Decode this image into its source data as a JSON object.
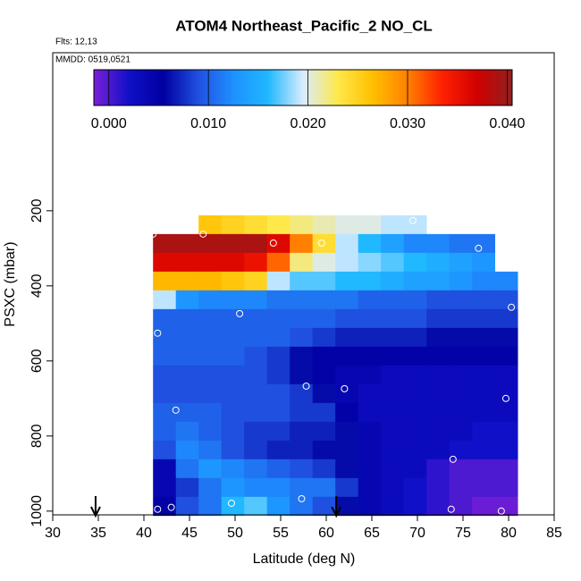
{
  "chart_data": {
    "type": "heatmap",
    "title": "ATOM4 Northeast_Pacific_2 NO_CL",
    "flights": "Flts: 12,13",
    "dates": "MMDD: 0519,0521",
    "x_label": "Latitude (deg N)",
    "y_label": "PSXC (mbar)",
    "xlim": [
      30,
      85
    ],
    "xticks": [
      30,
      35,
      40,
      45,
      50,
      55,
      60,
      65,
      70,
      75,
      80,
      85
    ],
    "ylim": [
      1010,
      -221
    ],
    "yticks": [
      200,
      400,
      600,
      800,
      1000
    ],
    "x_edges": [
      41,
      43.5,
      46,
      48.5,
      51,
      53.5,
      56,
      58.5,
      61,
      63.5,
      66,
      68.5,
      71,
      73.5,
      76,
      78.5,
      81
    ],
    "y_edges": [
      212,
      262,
      312,
      362,
      412,
      462,
      512,
      562,
      612,
      662,
      712,
      762,
      812,
      862,
      912,
      962,
      1012
    ],
    "values": [
      [
        null,
        null,
        0.026,
        0.025,
        0.024,
        0.023,
        0.022,
        0.021,
        0.02,
        0.02,
        0.019,
        0.019,
        null,
        null,
        null,
        null
      ],
      [
        0.039,
        0.039,
        0.039,
        0.039,
        0.039,
        0.036,
        0.03,
        0.024,
        0.019,
        0.016,
        0.014,
        0.012,
        0.012,
        0.011,
        0.011,
        null
      ],
      [
        0.036,
        0.036,
        0.036,
        0.036,
        0.035,
        0.031,
        0.022,
        0.02,
        0.019,
        0.018,
        0.017,
        0.016,
        0.015,
        0.014,
        0.013,
        null
      ],
      [
        0.027,
        0.027,
        0.027,
        0.026,
        0.025,
        0.019,
        0.017,
        0.017,
        0.016,
        0.016,
        0.015,
        0.014,
        0.014,
        0.013,
        0.012,
        0.012
      ],
      [
        0.019,
        0.013,
        0.012,
        0.012,
        0.012,
        0.011,
        0.011,
        0.011,
        0.011,
        0.01,
        0.01,
        0.01,
        0.009,
        0.009,
        0.009,
        0.009
      ],
      [
        0.01,
        0.01,
        0.01,
        0.01,
        0.01,
        0.01,
        0.01,
        0.01,
        0.009,
        0.009,
        0.009,
        0.009,
        0.008,
        0.008,
        0.008,
        0.008
      ],
      [
        0.01,
        0.01,
        0.01,
        0.01,
        0.01,
        0.01,
        0.009,
        0.008,
        0.007,
        0.007,
        0.007,
        0.007,
        0.006,
        0.006,
        0.006,
        0.006
      ],
      [
        0.01,
        0.01,
        0.01,
        0.01,
        0.009,
        0.008,
        0.006,
        0.005,
        0.005,
        0.005,
        0.005,
        0.005,
        0.005,
        0.005,
        0.005,
        0.005
      ],
      [
        0.009,
        0.009,
        0.009,
        0.009,
        0.009,
        0.008,
        0.006,
        0.005,
        0.004,
        0.004,
        0.003,
        0.003,
        0.003,
        0.003,
        0.003,
        0.003
      ],
      [
        0.009,
        0.009,
        0.009,
        0.009,
        0.009,
        0.009,
        0.008,
        0.006,
        0.004,
        0.003,
        0.003,
        0.003,
        0.003,
        0.003,
        0.003,
        0.003
      ],
      [
        0.01,
        0.01,
        0.01,
        0.009,
        0.009,
        0.009,
        0.008,
        0.008,
        0.005,
        0.003,
        0.003,
        0.003,
        0.003,
        0.003,
        0.003,
        0.003
      ],
      [
        0.01,
        0.011,
        0.01,
        0.009,
        0.008,
        0.008,
        0.007,
        0.007,
        0.006,
        0.004,
        0.003,
        0.003,
        0.003,
        0.003,
        0.002,
        0.002
      ],
      [
        0.009,
        0.012,
        0.011,
        0.009,
        0.008,
        0.007,
        0.007,
        0.006,
        0.006,
        0.004,
        0.003,
        0.003,
        0.003,
        0.002,
        0.002,
        0.002
      ],
      [
        0.004,
        0.011,
        0.013,
        0.012,
        0.011,
        0.01,
        0.009,
        0.008,
        0.006,
        0.004,
        0.003,
        0.003,
        0.001,
        0.0,
        0.0,
        0.0
      ],
      [
        0.004,
        0.008,
        0.011,
        0.013,
        0.012,
        0.012,
        0.011,
        0.011,
        0.008,
        0.004,
        0.003,
        0.002,
        0.001,
        0.0,
        0.0,
        0.0
      ],
      [
        0.005,
        0.009,
        0.011,
        0.016,
        0.017,
        0.013,
        0.011,
        0.009,
        0.006,
        0.004,
        0.003,
        0.002,
        0.001,
        0.0,
        -0.001,
        -0.001
      ]
    ],
    "clim": [
      -0.0015,
      0.0405
    ],
    "colorscale": [
      "#7a1fd8",
      "#1010c8",
      "#0000a0",
      "#2050e0",
      "#1e90ff",
      "#20b8ff",
      "#d8ecff",
      "#ffe84a",
      "#ffc000",
      "#ff8000",
      "#ff2000",
      "#d00000",
      "#902020"
    ],
    "cticks": [
      {
        "value": 0,
        "label": "0.000"
      },
      {
        "value": 0.01,
        "label": "0.010"
      },
      {
        "value": 0.02,
        "label": "0.020"
      },
      {
        "value": 0.03,
        "label": "0.030"
      },
      {
        "value": 0.04,
        "label": "0.040"
      }
    ],
    "points": {
      "x": [
        41,
        46.5,
        54.2,
        59.5,
        76.7,
        80.3,
        50.5,
        41.5,
        57.8,
        62,
        79.7,
        43.5,
        73.9,
        41.5,
        43,
        49.6,
        57.3,
        73.7,
        79.2,
        69.5
      ],
      "y": [
        262,
        262,
        286,
        286,
        300,
        457,
        474,
        526,
        667,
        674,
        700,
        731,
        862,
        995,
        990,
        979,
        967,
        995,
        1000,
        226
      ]
    },
    "arrows": [
      34.7,
      61.1
    ]
  }
}
